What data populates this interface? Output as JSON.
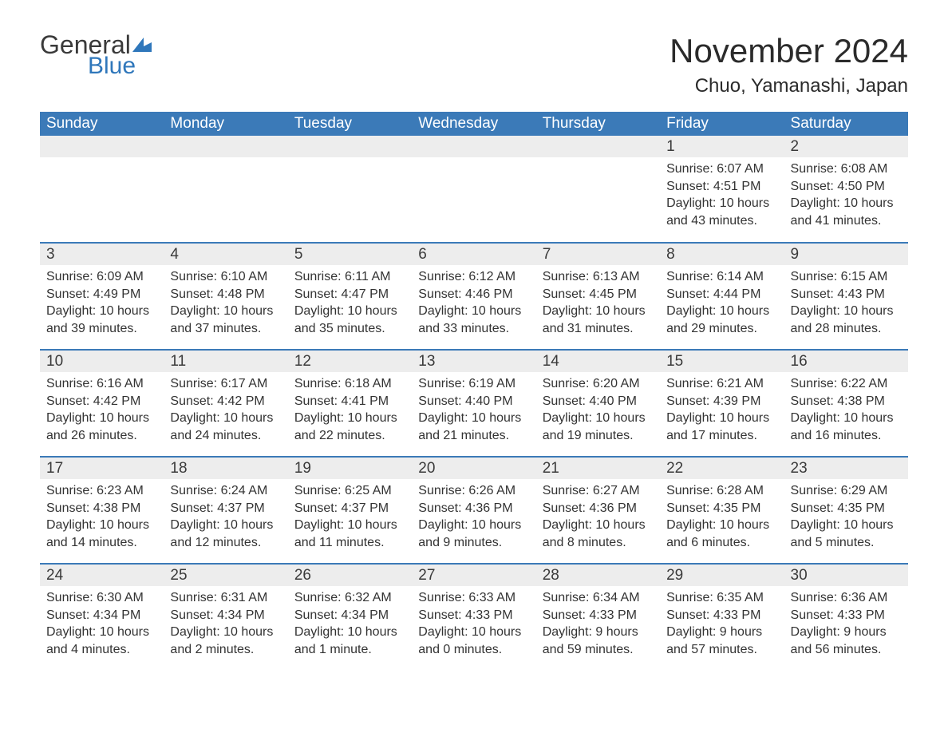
{
  "logo": {
    "text_general": "General",
    "text_blue": "Blue",
    "icon_color": "#2f77bb"
  },
  "header": {
    "month_title": "November 2024",
    "location": "Chuo, Yamanashi, Japan"
  },
  "colors": {
    "header_bg": "#3b7ab8",
    "header_text": "#ffffff",
    "daynum_bg": "#ededed",
    "row_border": "#3b7ab8",
    "body_text": "#333333",
    "logo_blue": "#2f77bb"
  },
  "calendar": {
    "day_headers": [
      "Sunday",
      "Monday",
      "Tuesday",
      "Wednesday",
      "Thursday",
      "Friday",
      "Saturday"
    ],
    "weeks": [
      [
        null,
        null,
        null,
        null,
        null,
        {
          "n": "1",
          "sunrise": "Sunrise: 6:07 AM",
          "sunset": "Sunset: 4:51 PM",
          "day1": "Daylight: 10 hours",
          "day2": "and 43 minutes."
        },
        {
          "n": "2",
          "sunrise": "Sunrise: 6:08 AM",
          "sunset": "Sunset: 4:50 PM",
          "day1": "Daylight: 10 hours",
          "day2": "and 41 minutes."
        }
      ],
      [
        {
          "n": "3",
          "sunrise": "Sunrise: 6:09 AM",
          "sunset": "Sunset: 4:49 PM",
          "day1": "Daylight: 10 hours",
          "day2": "and 39 minutes."
        },
        {
          "n": "4",
          "sunrise": "Sunrise: 6:10 AM",
          "sunset": "Sunset: 4:48 PM",
          "day1": "Daylight: 10 hours",
          "day2": "and 37 minutes."
        },
        {
          "n": "5",
          "sunrise": "Sunrise: 6:11 AM",
          "sunset": "Sunset: 4:47 PM",
          "day1": "Daylight: 10 hours",
          "day2": "and 35 minutes."
        },
        {
          "n": "6",
          "sunrise": "Sunrise: 6:12 AM",
          "sunset": "Sunset: 4:46 PM",
          "day1": "Daylight: 10 hours",
          "day2": "and 33 minutes."
        },
        {
          "n": "7",
          "sunrise": "Sunrise: 6:13 AM",
          "sunset": "Sunset: 4:45 PM",
          "day1": "Daylight: 10 hours",
          "day2": "and 31 minutes."
        },
        {
          "n": "8",
          "sunrise": "Sunrise: 6:14 AM",
          "sunset": "Sunset: 4:44 PM",
          "day1": "Daylight: 10 hours",
          "day2": "and 29 minutes."
        },
        {
          "n": "9",
          "sunrise": "Sunrise: 6:15 AM",
          "sunset": "Sunset: 4:43 PM",
          "day1": "Daylight: 10 hours",
          "day2": "and 28 minutes."
        }
      ],
      [
        {
          "n": "10",
          "sunrise": "Sunrise: 6:16 AM",
          "sunset": "Sunset: 4:42 PM",
          "day1": "Daylight: 10 hours",
          "day2": "and 26 minutes."
        },
        {
          "n": "11",
          "sunrise": "Sunrise: 6:17 AM",
          "sunset": "Sunset: 4:42 PM",
          "day1": "Daylight: 10 hours",
          "day2": "and 24 minutes."
        },
        {
          "n": "12",
          "sunrise": "Sunrise: 6:18 AM",
          "sunset": "Sunset: 4:41 PM",
          "day1": "Daylight: 10 hours",
          "day2": "and 22 minutes."
        },
        {
          "n": "13",
          "sunrise": "Sunrise: 6:19 AM",
          "sunset": "Sunset: 4:40 PM",
          "day1": "Daylight: 10 hours",
          "day2": "and 21 minutes."
        },
        {
          "n": "14",
          "sunrise": "Sunrise: 6:20 AM",
          "sunset": "Sunset: 4:40 PM",
          "day1": "Daylight: 10 hours",
          "day2": "and 19 minutes."
        },
        {
          "n": "15",
          "sunrise": "Sunrise: 6:21 AM",
          "sunset": "Sunset: 4:39 PM",
          "day1": "Daylight: 10 hours",
          "day2": "and 17 minutes."
        },
        {
          "n": "16",
          "sunrise": "Sunrise: 6:22 AM",
          "sunset": "Sunset: 4:38 PM",
          "day1": "Daylight: 10 hours",
          "day2": "and 16 minutes."
        }
      ],
      [
        {
          "n": "17",
          "sunrise": "Sunrise: 6:23 AM",
          "sunset": "Sunset: 4:38 PM",
          "day1": "Daylight: 10 hours",
          "day2": "and 14 minutes."
        },
        {
          "n": "18",
          "sunrise": "Sunrise: 6:24 AM",
          "sunset": "Sunset: 4:37 PM",
          "day1": "Daylight: 10 hours",
          "day2": "and 12 minutes."
        },
        {
          "n": "19",
          "sunrise": "Sunrise: 6:25 AM",
          "sunset": "Sunset: 4:37 PM",
          "day1": "Daylight: 10 hours",
          "day2": "and 11 minutes."
        },
        {
          "n": "20",
          "sunrise": "Sunrise: 6:26 AM",
          "sunset": "Sunset: 4:36 PM",
          "day1": "Daylight: 10 hours",
          "day2": "and 9 minutes."
        },
        {
          "n": "21",
          "sunrise": "Sunrise: 6:27 AM",
          "sunset": "Sunset: 4:36 PM",
          "day1": "Daylight: 10 hours",
          "day2": "and 8 minutes."
        },
        {
          "n": "22",
          "sunrise": "Sunrise: 6:28 AM",
          "sunset": "Sunset: 4:35 PM",
          "day1": "Daylight: 10 hours",
          "day2": "and 6 minutes."
        },
        {
          "n": "23",
          "sunrise": "Sunrise: 6:29 AM",
          "sunset": "Sunset: 4:35 PM",
          "day1": "Daylight: 10 hours",
          "day2": "and 5 minutes."
        }
      ],
      [
        {
          "n": "24",
          "sunrise": "Sunrise: 6:30 AM",
          "sunset": "Sunset: 4:34 PM",
          "day1": "Daylight: 10 hours",
          "day2": "and 4 minutes."
        },
        {
          "n": "25",
          "sunrise": "Sunrise: 6:31 AM",
          "sunset": "Sunset: 4:34 PM",
          "day1": "Daylight: 10 hours",
          "day2": "and 2 minutes."
        },
        {
          "n": "26",
          "sunrise": "Sunrise: 6:32 AM",
          "sunset": "Sunset: 4:34 PM",
          "day1": "Daylight: 10 hours",
          "day2": "and 1 minute."
        },
        {
          "n": "27",
          "sunrise": "Sunrise: 6:33 AM",
          "sunset": "Sunset: 4:33 PM",
          "day1": "Daylight: 10 hours",
          "day2": "and 0 minutes."
        },
        {
          "n": "28",
          "sunrise": "Sunrise: 6:34 AM",
          "sunset": "Sunset: 4:33 PM",
          "day1": "Daylight: 9 hours",
          "day2": "and 59 minutes."
        },
        {
          "n": "29",
          "sunrise": "Sunrise: 6:35 AM",
          "sunset": "Sunset: 4:33 PM",
          "day1": "Daylight: 9 hours",
          "day2": "and 57 minutes."
        },
        {
          "n": "30",
          "sunrise": "Sunrise: 6:36 AM",
          "sunset": "Sunset: 4:33 PM",
          "day1": "Daylight: 9 hours",
          "day2": "and 56 minutes."
        }
      ]
    ]
  }
}
